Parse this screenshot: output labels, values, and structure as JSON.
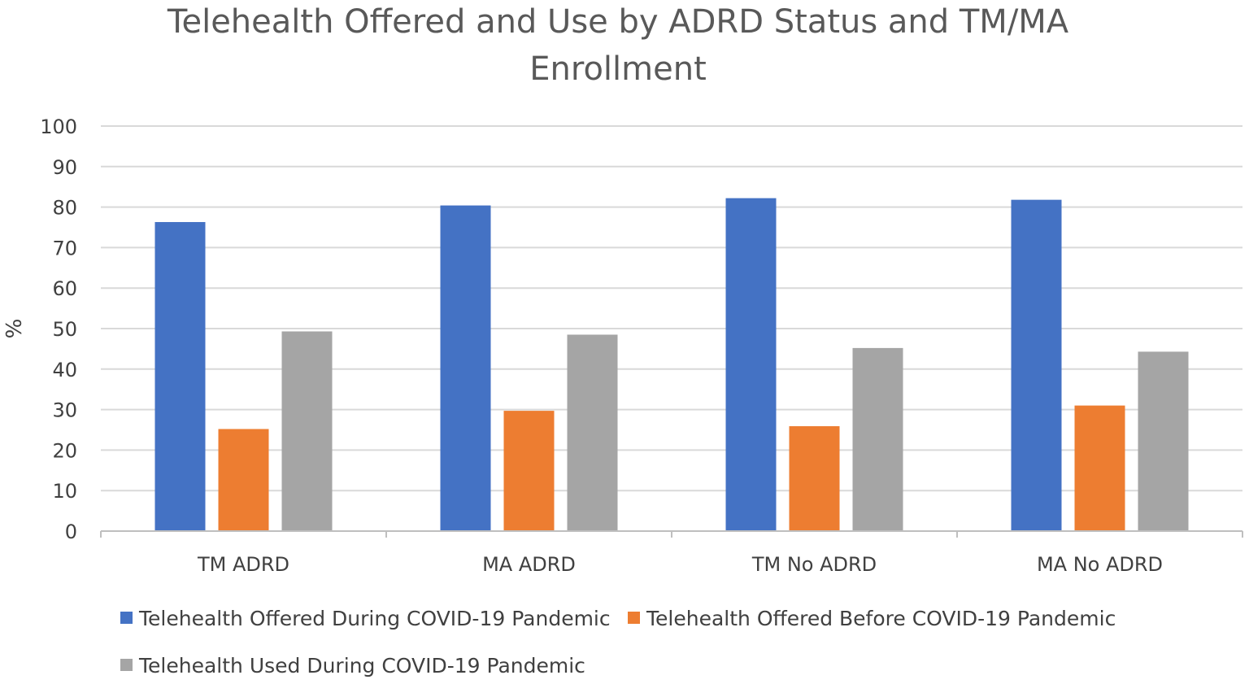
{
  "chart_data": {
    "type": "bar",
    "title_lines": [
      "Telehealth Offered and Use by ADRD Status and TM/MA",
      "Enrollment"
    ],
    "xlabel": "",
    "ylabel": "%",
    "ylim": [
      0,
      100
    ],
    "yticks": [
      0,
      10,
      20,
      30,
      40,
      50,
      60,
      70,
      80,
      90,
      100
    ],
    "grid": true,
    "legend_position": "bottom",
    "categories": [
      "TM ADRD",
      "MA ADRD",
      "TM No ADRD",
      "MA No ADRD"
    ],
    "series": [
      {
        "name": "Telehealth Offered During COVID-19 Pandemic",
        "color": "#4472C4",
        "values": [
          76.3,
          80.4,
          82.2,
          81.8
        ]
      },
      {
        "name": "Telehealth Offered Before COVID-19 Pandemic",
        "color": "#ED7D31",
        "values": [
          25.2,
          29.7,
          25.9,
          31.0
        ]
      },
      {
        "name": "Telehealth Used During COVID-19 Pandemic",
        "color": "#A5A5A5",
        "values": [
          49.3,
          48.5,
          45.2,
          44.3
        ]
      }
    ]
  }
}
